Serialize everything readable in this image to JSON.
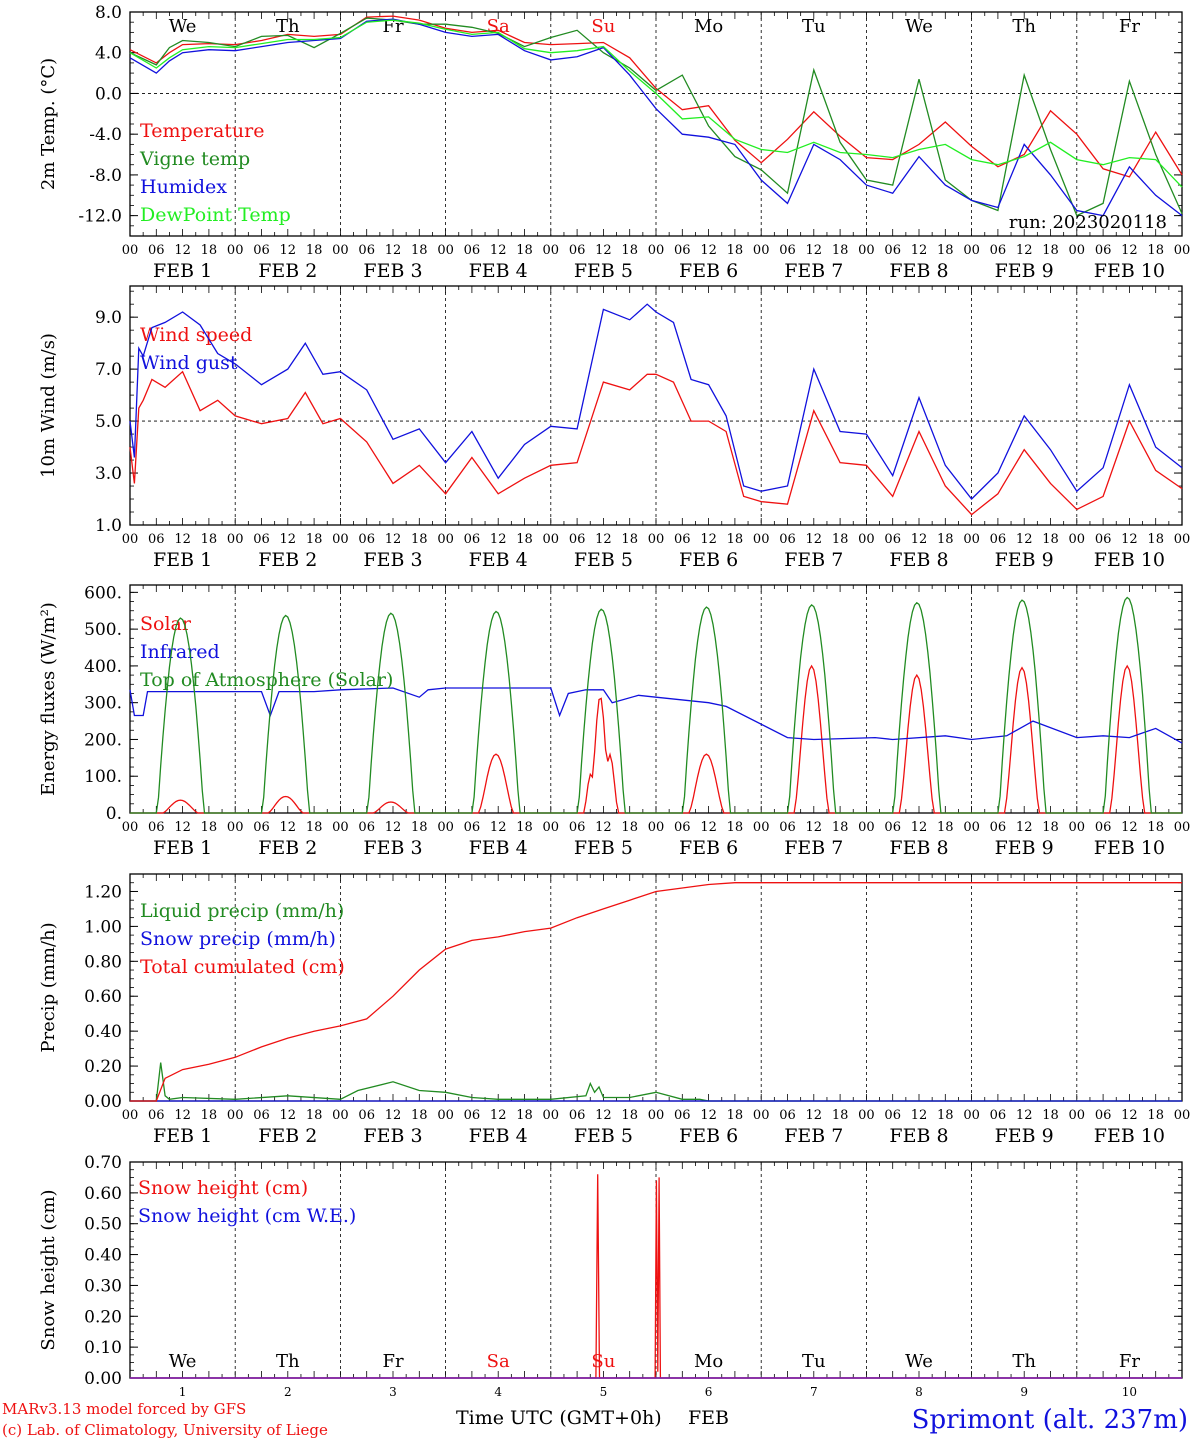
{
  "colors": {
    "red": "#ee1111",
    "darkgreen": "#228b22",
    "blue": "#1111dd",
    "lightgreen": "#22ee22",
    "purple": "#8822aa"
  },
  "days": [
    "We",
    "Th",
    "Fr",
    "Sa",
    "Su",
    "Mo",
    "Tu",
    "We",
    "Th",
    "Fr"
  ],
  "weekend_color_days": [
    3,
    4
  ],
  "hour_ticks": [
    "00",
    "06",
    "12",
    "18"
  ],
  "date_labels": [
    "FEB  1",
    "FEB  2",
    "FEB  3",
    "FEB  4",
    "FEB  5",
    "FEB  6",
    "FEB  7",
    "FEB  8",
    "FEB  9",
    "FEB 10"
  ],
  "bottom_day_numbers": [
    "1",
    "2",
    "3",
    "4",
    "5",
    "6",
    "7",
    "8",
    "9",
    "10"
  ],
  "x_axis_title": "Time UTC (GMT+0h)",
  "x_axis_month": "FEB",
  "footer": {
    "model": "MARv3.13 model forced by GFS",
    "lab": "(c) Lab. of Climatology, University of Liege",
    "station": "Sprimont (alt. 237m)"
  },
  "run_label": "run: 2023020118",
  "chart_data": [
    {
      "type": "line",
      "ylabel": "2m Temp. (°C)",
      "ylim": [
        -14,
        8
      ],
      "yticks": [
        "8.0",
        "4.0",
        "0.0",
        "-4.0",
        "-8.0",
        "-12.0"
      ],
      "ytick_values": [
        8,
        4,
        0,
        -4,
        -8,
        -12
      ],
      "dashed_zero": 0,
      "x_unit": "hours since FEB 1 00 UTC",
      "series": [
        {
          "name": "Temperature",
          "color": "red",
          "x": [
            0,
            6,
            9,
            12,
            18,
            24,
            30,
            36,
            42,
            48,
            54,
            60,
            66,
            72,
            78,
            84,
            90,
            96,
            102,
            108,
            114,
            120,
            126,
            132,
            138,
            144,
            150,
            156,
            162,
            168,
            174,
            180,
            186,
            192,
            198,
            204,
            210,
            216,
            222,
            228,
            234,
            240
          ],
          "y": [
            4.3,
            3.0,
            4.0,
            4.8,
            4.9,
            4.8,
            5.2,
            5.8,
            5.6,
            5.8,
            7.5,
            7.6,
            7.2,
            6.4,
            6.0,
            6.2,
            5.0,
            4.8,
            4.9,
            5.0,
            3.5,
            0.5,
            -1.6,
            -1.2,
            -4.6,
            -6.8,
            -4.5,
            -1.8,
            -4.2,
            -6.3,
            -6.5,
            -5.0,
            -2.8,
            -5.2,
            -7.2,
            -6.0,
            -1.7,
            -4.0,
            -7.4,
            -8.2,
            -3.8,
            -8.0
          ]
        },
        {
          "name": "Vigne temp",
          "color": "darkgreen",
          "x": [
            0,
            6,
            9,
            12,
            18,
            24,
            30,
            36,
            42,
            48,
            54,
            60,
            66,
            72,
            78,
            84,
            90,
            96,
            102,
            108,
            114,
            120,
            126,
            132,
            138,
            144,
            150,
            156,
            162,
            168,
            174,
            180,
            186,
            192,
            198,
            204,
            210,
            216,
            222,
            228,
            234,
            240
          ],
          "y": [
            4.0,
            2.8,
            4.5,
            5.2,
            5.0,
            4.6,
            5.6,
            5.7,
            4.5,
            5.9,
            7.4,
            7.2,
            6.8,
            6.8,
            6.5,
            5.9,
            4.6,
            5.5,
            6.2,
            4.0,
            2.5,
            0.3,
            1.8,
            -3.2,
            -6.2,
            -7.5,
            -9.8,
            2.3,
            -4.8,
            -8.5,
            -9.0,
            1.4,
            -8.5,
            -10.5,
            -11.5,
            1.8,
            -5.5,
            -12.0,
            -10.8,
            1.2,
            -6.0,
            -11.8
          ]
        },
        {
          "name": "Humidex",
          "color": "blue",
          "x": [
            0,
            6,
            9,
            12,
            18,
            24,
            30,
            36,
            42,
            48,
            54,
            60,
            66,
            72,
            78,
            84,
            90,
            96,
            102,
            108,
            114,
            120,
            126,
            132,
            138,
            144,
            150,
            156,
            162,
            168,
            174,
            180,
            186,
            192,
            198,
            204,
            210,
            216,
            222,
            228,
            234,
            240
          ],
          "y": [
            3.5,
            2.0,
            3.2,
            4.0,
            4.3,
            4.2,
            4.6,
            5.0,
            5.2,
            5.4,
            7.1,
            7.3,
            6.8,
            6.0,
            5.6,
            5.8,
            4.2,
            3.3,
            3.6,
            4.5,
            1.8,
            -1.5,
            -4.0,
            -4.3,
            -5.0,
            -8.5,
            -10.8,
            -5.0,
            -6.5,
            -9.0,
            -9.8,
            -6.2,
            -9.0,
            -10.5,
            -11.2,
            -5.0,
            -8.0,
            -11.5,
            -12.0,
            -7.2,
            -10.0,
            -12.0
          ]
        },
        {
          "name": "DewPoint Temp",
          "color": "lightgreen",
          "x": [
            0,
            6,
            9,
            12,
            18,
            24,
            30,
            36,
            42,
            48,
            54,
            60,
            66,
            72,
            78,
            84,
            90,
            96,
            102,
            108,
            114,
            120,
            126,
            132,
            138,
            144,
            150,
            156,
            162,
            168,
            174,
            180,
            186,
            192,
            198,
            204,
            210,
            216,
            222,
            228,
            234,
            240
          ],
          "y": [
            4.0,
            2.5,
            3.5,
            4.3,
            4.6,
            4.5,
            4.9,
            5.3,
            5.3,
            5.5,
            7.0,
            7.2,
            6.9,
            6.3,
            5.8,
            6.0,
            4.4,
            4.0,
            4.2,
            4.6,
            2.2,
            0.0,
            -2.5,
            -2.3,
            -4.5,
            -5.5,
            -5.8,
            -4.8,
            -5.8,
            -6.0,
            -6.3,
            -5.5,
            -5.0,
            -6.5,
            -7.0,
            -6.2,
            -4.8,
            -6.5,
            -7.0,
            -6.3,
            -6.5,
            -9.2
          ]
        }
      ]
    },
    {
      "type": "line",
      "ylabel": "10m Wind (m/s)",
      "ylim": [
        1,
        10.2
      ],
      "yticks": [
        "9.0",
        "7.0",
        "5.0",
        "3.0",
        "1.0"
      ],
      "ytick_values": [
        9,
        7,
        5,
        3,
        1
      ],
      "dashed_zero": 5,
      "x_unit": "hours since FEB 1 00 UTC",
      "series": [
        {
          "name": "Wind speed",
          "color": "red",
          "x": [
            0,
            1,
            2,
            3,
            5,
            8,
            12,
            16,
            20,
            24,
            30,
            36,
            40,
            44,
            48,
            54,
            60,
            66,
            72,
            78,
            84,
            90,
            96,
            102,
            108,
            114,
            118,
            120,
            124,
            128,
            132,
            136,
            140,
            144,
            150,
            156,
            162,
            168,
            174,
            180,
            186,
            192,
            198,
            204,
            210,
            216,
            222,
            228,
            234,
            240
          ],
          "y": [
            4.0,
            2.6,
            5.5,
            5.8,
            6.6,
            6.3,
            6.9,
            5.4,
            5.8,
            5.2,
            4.9,
            5.1,
            6.1,
            4.9,
            5.1,
            4.2,
            2.6,
            3.3,
            2.2,
            3.6,
            2.2,
            2.8,
            3.3,
            3.4,
            6.5,
            6.2,
            6.8,
            6.8,
            6.5,
            5.0,
            5.0,
            4.6,
            2.1,
            1.9,
            1.8,
            5.4,
            3.4,
            3.3,
            2.1,
            4.6,
            2.5,
            1.4,
            2.2,
            3.9,
            2.6,
            1.6,
            2.1,
            5.0,
            3.1,
            2.4
          ]
        },
        {
          "name": "Wind gust",
          "color": "blue",
          "x": [
            0,
            1,
            2,
            3,
            5,
            8,
            12,
            16,
            20,
            24,
            30,
            36,
            40,
            44,
            48,
            54,
            60,
            66,
            72,
            78,
            84,
            90,
            96,
            102,
            108,
            114,
            118,
            120,
            124,
            128,
            132,
            136,
            140,
            144,
            150,
            156,
            162,
            168,
            174,
            180,
            186,
            192,
            198,
            204,
            210,
            216,
            222,
            228,
            234,
            240
          ],
          "y": [
            5.0,
            3.6,
            7.8,
            7.5,
            8.6,
            8.8,
            9.2,
            8.7,
            7.6,
            7.2,
            6.4,
            7.0,
            8.0,
            6.8,
            6.9,
            6.2,
            4.3,
            4.7,
            3.4,
            4.6,
            2.8,
            4.1,
            4.8,
            4.7,
            9.3,
            8.9,
            9.5,
            9.2,
            8.8,
            6.6,
            6.4,
            5.2,
            2.5,
            2.3,
            2.5,
            7.0,
            4.6,
            4.5,
            2.9,
            5.9,
            3.3,
            2.0,
            3.0,
            5.2,
            3.9,
            2.3,
            3.2,
            6.4,
            4.0,
            3.2
          ]
        }
      ]
    },
    {
      "type": "line",
      "ylabel": "Energy fluxes (W/m²)",
      "ylim": [
        0,
        620
      ],
      "yticks": [
        "600.",
        "500.",
        "400.",
        "300.",
        "200.",
        "100.",
        "0."
      ],
      "ytick_values": [
        600,
        500,
        400,
        300,
        200,
        100,
        0
      ],
      "x_unit": "hours since FEB 1 00 UTC",
      "toa_peaks": [
        530,
        537,
        543,
        548,
        554,
        560,
        566,
        572,
        579,
        586
      ],
      "solar_peaks": [
        35,
        45,
        30,
        160,
        320,
        160,
        400,
        375,
        395,
        400
      ],
      "series": [
        {
          "name": "Solar",
          "color": "red"
        },
        {
          "name": "Infrared",
          "color": "blue",
          "x": [
            0,
            1,
            3,
            4,
            6,
            24,
            30,
            32,
            34,
            42,
            48,
            60,
            66,
            68,
            72,
            96,
            98,
            100,
            104,
            108,
            110,
            116,
            120,
            132,
            136,
            150,
            156,
            170,
            174,
            186,
            192,
            200,
            206,
            216,
            222,
            228,
            234,
            240
          ],
          "y": [
            335,
            265,
            265,
            330,
            330,
            330,
            330,
            265,
            330,
            330,
            335,
            340,
            315,
            335,
            340,
            340,
            265,
            325,
            335,
            335,
            300,
            320,
            315,
            300,
            290,
            205,
            200,
            205,
            200,
            210,
            200,
            210,
            250,
            205,
            210,
            205,
            230,
            190
          ]
        },
        {
          "name": "Top of Atmosphere (Solar)",
          "color": "darkgreen"
        }
      ]
    },
    {
      "type": "line",
      "ylabel": "Precip (mm/h)",
      "ylim": [
        0,
        1.3
      ],
      "yticks": [
        "1.20",
        "1.00",
        "0.80",
        "0.60",
        "0.40",
        "0.20",
        "0.00"
      ],
      "ytick_values": [
        1.2,
        1.0,
        0.8,
        0.6,
        0.4,
        0.2,
        0.0
      ],
      "x_unit": "hours since FEB 1 00 UTC",
      "series": [
        {
          "name": "Liquid precip (mm/h)",
          "color": "darkgreen",
          "x": [
            0,
            6,
            7,
            8,
            9,
            12,
            24,
            36,
            48,
            52,
            60,
            66,
            72,
            78,
            84,
            96,
            104,
            105,
            106,
            107,
            108,
            114,
            120,
            126,
            130,
            132,
            240
          ],
          "y": [
            0,
            0,
            0.22,
            0.03,
            0.01,
            0.02,
            0.01,
            0.03,
            0.01,
            0.06,
            0.11,
            0.06,
            0.05,
            0.02,
            0.01,
            0.01,
            0.03,
            0.1,
            0.05,
            0.08,
            0.02,
            0.02,
            0.05,
            0.01,
            0.01,
            0,
            0
          ]
        },
        {
          "name": "Snow precip (mm/h)",
          "color": "blue",
          "x": [
            0,
            240
          ],
          "y": [
            0,
            0
          ]
        },
        {
          "name": "Total cumulated (cm)",
          "color": "red",
          "x": [
            0,
            6,
            8,
            12,
            18,
            24,
            30,
            36,
            42,
            48,
            54,
            60,
            66,
            72,
            78,
            84,
            90,
            96,
            102,
            108,
            114,
            120,
            126,
            132,
            138,
            144,
            240
          ],
          "y": [
            0,
            0,
            0.13,
            0.18,
            0.21,
            0.25,
            0.31,
            0.36,
            0.4,
            0.43,
            0.47,
            0.6,
            0.75,
            0.87,
            0.92,
            0.94,
            0.97,
            0.99,
            1.05,
            1.1,
            1.15,
            1.2,
            1.22,
            1.24,
            1.25,
            1.25,
            1.25
          ]
        }
      ]
    },
    {
      "type": "line",
      "ylabel": "Snow height (cm)",
      "ylim": [
        0,
        0.7
      ],
      "yticks": [
        "0.70",
        "0.60",
        "0.50",
        "0.40",
        "0.30",
        "0.20",
        "0.10",
        "0.00"
      ],
      "ytick_values": [
        0.7,
        0.6,
        0.5,
        0.4,
        0.3,
        0.2,
        0.1,
        0.0
      ],
      "x_unit": "hours since FEB 1 00 UTC",
      "series": [
        {
          "name": "Snow height (cm)",
          "color": "red",
          "x": [
            0,
            106.3,
            106.7,
            107.1,
            119.8,
            120.1,
            120.4,
            120.7,
            121.0,
            240
          ],
          "y": [
            0,
            0,
            0.66,
            0,
            0,
            0.64,
            0.02,
            0.65,
            0,
            0
          ]
        },
        {
          "name": "Snow height (cm W.E.)",
          "color": "blue",
          "x": [
            0,
            240
          ],
          "y": [
            0,
            0
          ]
        }
      ]
    }
  ]
}
